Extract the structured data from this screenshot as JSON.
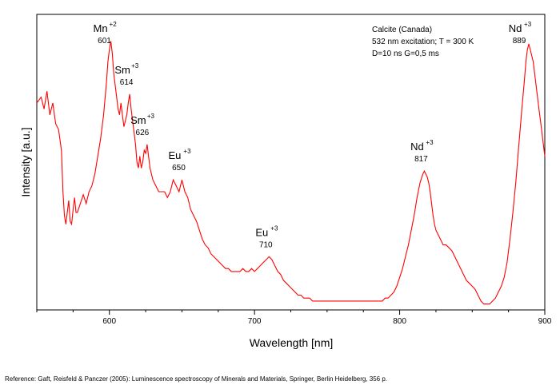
{
  "chart_data": {
    "type": "line",
    "xlabel": "Wavelength [nm]",
    "ylabel": "Intensity [a.u.]",
    "xlim": [
      550,
      900
    ],
    "ylim": [
      0,
      100
    ],
    "grid": false,
    "x_ticks": [
      600,
      700,
      800,
      900
    ],
    "info_lines": [
      "Calcite (Canada)",
      "532 nm excitation; T = 300 K",
      "D=10 ns G=0,5 ms"
    ],
    "peaks": [
      {
        "ion": "Mn",
        "charge": "+2",
        "wavelength": "601",
        "x": 601
      },
      {
        "ion": "Sm",
        "charge": "+3",
        "wavelength": "614",
        "x": 614
      },
      {
        "ion": "Sm",
        "charge": "+3",
        "wavelength": "626",
        "x": 626
      },
      {
        "ion": "Eu",
        "charge": "+3",
        "wavelength": "650",
        "x": 650
      },
      {
        "ion": "Eu",
        "charge": "+3",
        "wavelength": "710",
        "x": 710
      },
      {
        "ion": "Nd",
        "charge": "+3",
        "wavelength": "817",
        "x": 817
      },
      {
        "ion": "Nd",
        "charge": "+3",
        "wavelength": "889",
        "x": 889
      }
    ],
    "series": [
      {
        "color": "#ff0000",
        "points": [
          [
            550,
            70
          ],
          [
            553,
            72
          ],
          [
            555,
            68
          ],
          [
            557,
            74
          ],
          [
            559,
            66
          ],
          [
            561,
            70
          ],
          [
            563,
            63
          ],
          [
            565,
            61
          ],
          [
            567,
            54
          ],
          [
            568,
            40
          ],
          [
            569,
            32
          ],
          [
            570,
            29
          ],
          [
            571,
            33
          ],
          [
            572,
            37
          ],
          [
            573,
            30
          ],
          [
            574,
            29
          ],
          [
            575,
            34
          ],
          [
            576,
            38
          ],
          [
            577,
            33
          ],
          [
            578,
            33
          ],
          [
            580,
            36
          ],
          [
            582,
            39
          ],
          [
            584,
            36
          ],
          [
            586,
            40
          ],
          [
            588,
            42
          ],
          [
            590,
            46
          ],
          [
            592,
            52
          ],
          [
            594,
            58
          ],
          [
            596,
            66
          ],
          [
            598,
            77
          ],
          [
            599,
            84
          ],
          [
            600,
            88
          ],
          [
            601,
            91
          ],
          [
            602,
            87
          ],
          [
            603,
            80
          ],
          [
            604,
            76
          ],
          [
            605,
            72
          ],
          [
            606,
            68
          ],
          [
            607,
            66
          ],
          [
            608,
            70
          ],
          [
            609,
            66
          ],
          [
            610,
            62
          ],
          [
            611,
            64
          ],
          [
            612,
            66
          ],
          [
            613,
            70
          ],
          [
            614,
            73
          ],
          [
            615,
            68
          ],
          [
            616,
            64
          ],
          [
            617,
            60
          ],
          [
            618,
            56
          ],
          [
            619,
            50
          ],
          [
            620,
            48
          ],
          [
            621,
            52
          ],
          [
            622,
            48
          ],
          [
            623,
            50
          ],
          [
            624,
            54
          ],
          [
            625,
            53
          ],
          [
            626,
            56
          ],
          [
            627,
            52
          ],
          [
            628,
            48
          ],
          [
            629,
            46
          ],
          [
            630,
            44
          ],
          [
            632,
            42
          ],
          [
            634,
            40
          ],
          [
            636,
            40
          ],
          [
            638,
            40
          ],
          [
            640,
            38
          ],
          [
            642,
            40
          ],
          [
            644,
            44
          ],
          [
            646,
            42
          ],
          [
            648,
            40
          ],
          [
            650,
            44
          ],
          [
            652,
            40
          ],
          [
            654,
            38
          ],
          [
            656,
            34
          ],
          [
            658,
            32
          ],
          [
            660,
            30
          ],
          [
            662,
            27
          ],
          [
            664,
            24
          ],
          [
            666,
            22
          ],
          [
            668,
            21
          ],
          [
            670,
            19
          ],
          [
            672,
            18
          ],
          [
            674,
            17
          ],
          [
            676,
            16
          ],
          [
            678,
            15
          ],
          [
            680,
            14
          ],
          [
            682,
            14
          ],
          [
            684,
            13
          ],
          [
            686,
            13
          ],
          [
            688,
            13
          ],
          [
            690,
            13
          ],
          [
            692,
            14
          ],
          [
            694,
            13
          ],
          [
            696,
            13
          ],
          [
            698,
            14
          ],
          [
            700,
            13
          ],
          [
            702,
            14
          ],
          [
            704,
            15
          ],
          [
            706,
            16
          ],
          [
            708,
            17
          ],
          [
            710,
            18
          ],
          [
            712,
            17
          ],
          [
            714,
            15
          ],
          [
            716,
            13
          ],
          [
            718,
            12
          ],
          [
            720,
            10
          ],
          [
            722,
            9
          ],
          [
            724,
            8
          ],
          [
            726,
            7
          ],
          [
            728,
            6
          ],
          [
            730,
            5
          ],
          [
            732,
            5
          ],
          [
            734,
            4
          ],
          [
            736,
            4
          ],
          [
            738,
            4
          ],
          [
            740,
            3
          ],
          [
            742,
            3
          ],
          [
            744,
            3
          ],
          [
            746,
            3
          ],
          [
            748,
            3
          ],
          [
            750,
            3
          ],
          [
            752,
            3
          ],
          [
            754,
            3
          ],
          [
            756,
            3
          ],
          [
            758,
            3
          ],
          [
            760,
            3
          ],
          [
            762,
            3
          ],
          [
            764,
            3
          ],
          [
            766,
            3
          ],
          [
            768,
            3
          ],
          [
            770,
            3
          ],
          [
            772,
            3
          ],
          [
            774,
            3
          ],
          [
            776,
            3
          ],
          [
            778,
            3
          ],
          [
            780,
            3
          ],
          [
            782,
            3
          ],
          [
            784,
            3
          ],
          [
            786,
            3
          ],
          [
            788,
            3
          ],
          [
            790,
            4
          ],
          [
            792,
            4
          ],
          [
            794,
            5
          ],
          [
            796,
            6
          ],
          [
            798,
            8
          ],
          [
            800,
            11
          ],
          [
            802,
            14
          ],
          [
            804,
            18
          ],
          [
            806,
            22
          ],
          [
            808,
            27
          ],
          [
            810,
            32
          ],
          [
            812,
            38
          ],
          [
            814,
            43
          ],
          [
            816,
            46
          ],
          [
            817,
            47
          ],
          [
            818,
            46
          ],
          [
            819,
            45
          ],
          [
            820,
            43
          ],
          [
            821,
            40
          ],
          [
            822,
            36
          ],
          [
            823,
            32
          ],
          [
            824,
            29
          ],
          [
            825,
            27
          ],
          [
            826,
            26
          ],
          [
            828,
            24
          ],
          [
            830,
            22
          ],
          [
            832,
            22
          ],
          [
            834,
            21
          ],
          [
            836,
            20
          ],
          [
            838,
            18
          ],
          [
            840,
            16
          ],
          [
            842,
            14
          ],
          [
            844,
            12
          ],
          [
            846,
            10
          ],
          [
            848,
            9
          ],
          [
            850,
            8
          ],
          [
            852,
            7
          ],
          [
            854,
            5
          ],
          [
            856,
            3
          ],
          [
            858,
            2
          ],
          [
            860,
            2
          ],
          [
            862,
            2
          ],
          [
            864,
            3
          ],
          [
            866,
            4
          ],
          [
            868,
            6
          ],
          [
            870,
            8
          ],
          [
            872,
            11
          ],
          [
            874,
            16
          ],
          [
            876,
            24
          ],
          [
            878,
            33
          ],
          [
            880,
            43
          ],
          [
            882,
            55
          ],
          [
            884,
            67
          ],
          [
            886,
            78
          ],
          [
            887,
            84
          ],
          [
            888,
            88
          ],
          [
            889,
            90
          ],
          [
            890,
            88
          ],
          [
            891,
            86
          ],
          [
            892,
            84
          ],
          [
            893,
            80
          ],
          [
            894,
            76
          ],
          [
            895,
            72
          ],
          [
            896,
            68
          ],
          [
            897,
            64
          ],
          [
            898,
            60
          ],
          [
            899,
            56
          ],
          [
            900,
            52
          ]
        ]
      }
    ]
  },
  "reference": "Reference: Gaft, Reisfeld & Panczer (2005): Luminescence spectroscopy of Minerals and Materials, Springer, Berlin Heidelberg, 356 p."
}
